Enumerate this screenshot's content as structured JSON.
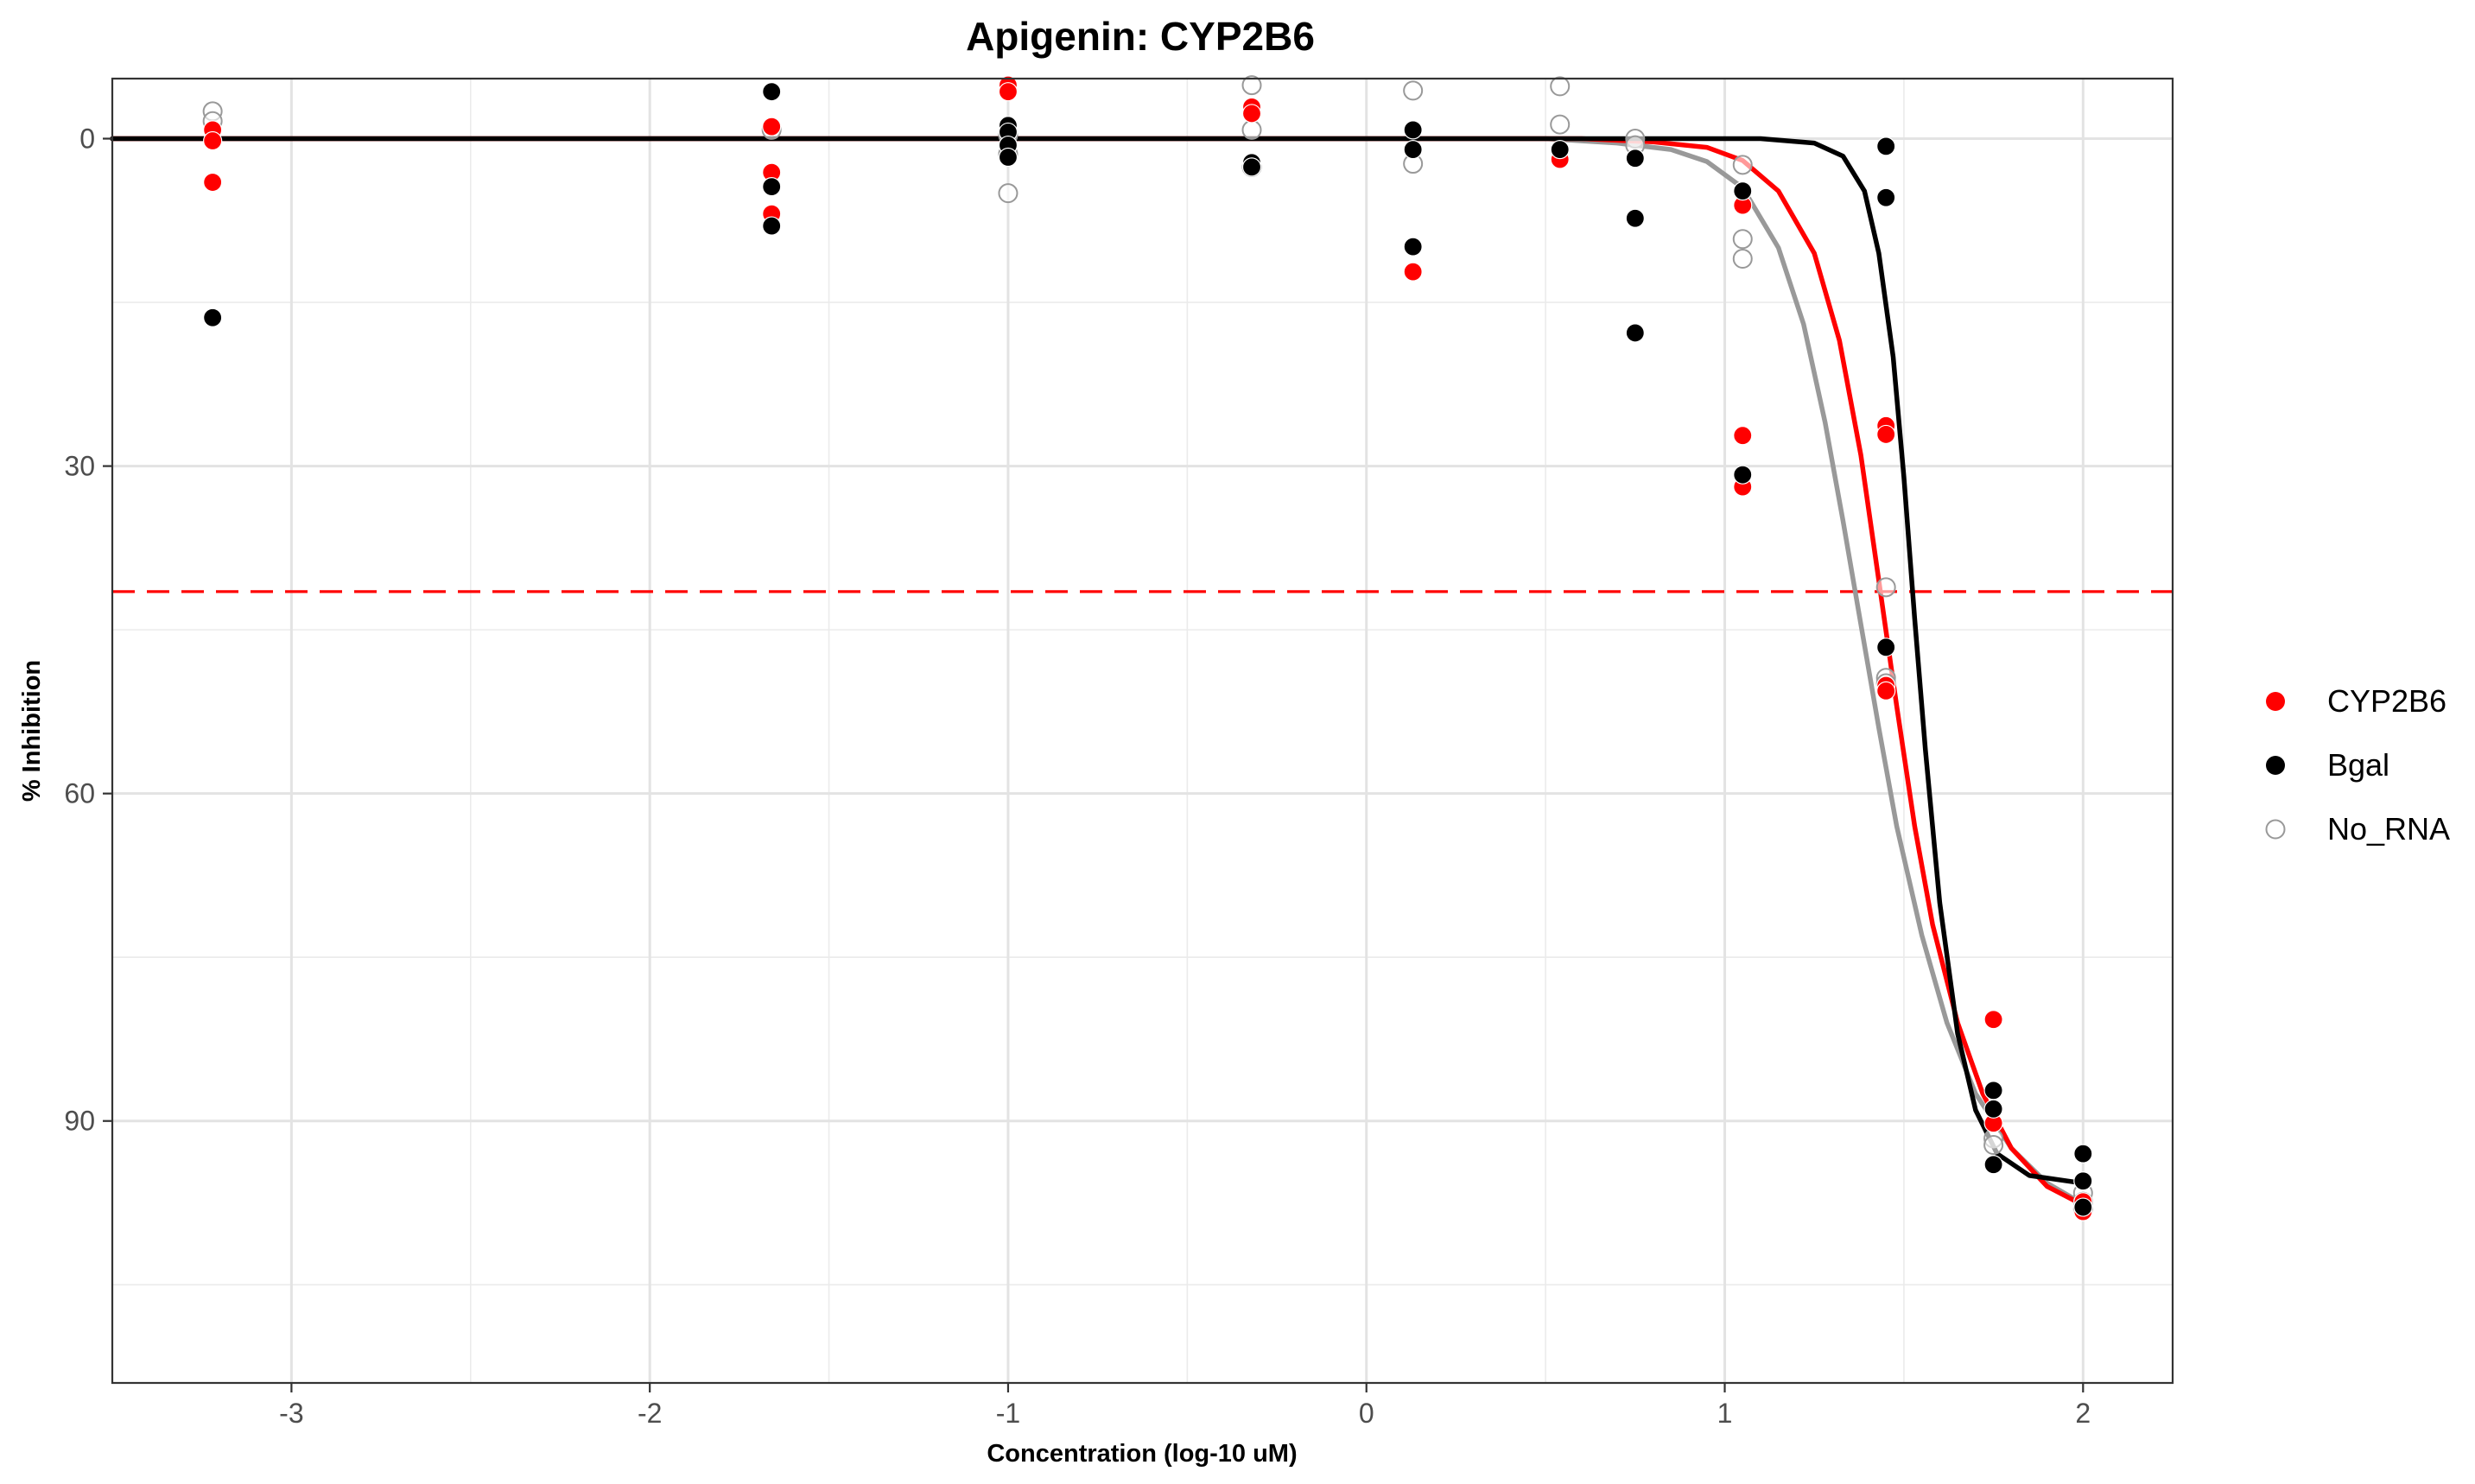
{
  "chart_data": {
    "type": "scatter",
    "title": "Apigenin: CYP2B6",
    "xlabel": "Concentration (log-10 uM)",
    "ylabel": "% Inhibition",
    "xlim": [
      -3.5,
      2.25
    ],
    "ylim": [
      -5.5,
      114
    ],
    "y_reversed": true,
    "x_ticks": [
      -3,
      -2,
      -1,
      0,
      1,
      2
    ],
    "x_tick_labels": [
      "-3",
      "-2",
      "-1",
      "0",
      "1",
      "2"
    ],
    "y_ticks": [
      0,
      30,
      60,
      90
    ],
    "y_tick_labels": [
      "0",
      "30",
      "60",
      "90"
    ],
    "grid": true,
    "legend_position": "right",
    "reference_line": {
      "orientation": "horizontal",
      "y": 41.5,
      "style": "dashed",
      "color": "#ff0000"
    },
    "series": [
      {
        "name": "CYP2B6",
        "marker": "filled-circle",
        "color": "#ff0000",
        "points": [
          [
            -3.22,
            -0.8
          ],
          [
            -3.22,
            0.2
          ],
          [
            -3.22,
            4.0
          ],
          [
            -1.66,
            -1.1
          ],
          [
            -1.66,
            3.1
          ],
          [
            -1.66,
            6.9
          ],
          [
            -1.0,
            -4.9
          ],
          [
            -1.0,
            -4.3
          ],
          [
            -0.32,
            -2.9
          ],
          [
            -0.32,
            -2.3
          ],
          [
            0.13,
            12.2
          ],
          [
            0.54,
            1.9
          ],
          [
            1.05,
            6.1
          ],
          [
            1.05,
            27.2
          ],
          [
            1.05,
            31.9
          ],
          [
            1.45,
            26.3
          ],
          [
            1.45,
            27.1
          ],
          [
            1.45,
            50.1
          ],
          [
            1.45,
            50.6
          ],
          [
            1.75,
            80.7
          ],
          [
            1.75,
            90.2
          ],
          [
            2.0,
            98.3
          ],
          [
            2.0,
            97.4
          ]
        ],
        "curve": [
          [
            -3.5,
            0.0
          ],
          [
            0.6,
            0.0
          ],
          [
            0.8,
            0.3
          ],
          [
            0.95,
            0.8
          ],
          [
            1.05,
            2.0
          ],
          [
            1.15,
            4.8
          ],
          [
            1.25,
            10.5
          ],
          [
            1.32,
            18.5
          ],
          [
            1.38,
            29.0
          ],
          [
            1.43,
            40.5
          ],
          [
            1.48,
            52.0
          ],
          [
            1.53,
            63.0
          ],
          [
            1.58,
            72.0
          ],
          [
            1.65,
            81.0
          ],
          [
            1.72,
            87.5
          ],
          [
            1.8,
            92.5
          ],
          [
            1.9,
            96.0
          ],
          [
            2.0,
            97.7
          ]
        ]
      },
      {
        "name": "Bgal",
        "marker": "filled-circle",
        "color": "#000000",
        "points": [
          [
            -3.22,
            16.4
          ],
          [
            -1.66,
            -4.3
          ],
          [
            -1.66,
            4.4
          ],
          [
            -1.66,
            8.0
          ],
          [
            -1.0,
            -1.2
          ],
          [
            -1.0,
            -0.6
          ],
          [
            -1.0,
            0.6
          ],
          [
            -1.0,
            1.7
          ],
          [
            -0.32,
            2.2
          ],
          [
            -0.32,
            2.6
          ],
          [
            0.13,
            -0.8
          ],
          [
            0.13,
            1.0
          ],
          [
            0.13,
            9.9
          ],
          [
            0.54,
            1.0
          ],
          [
            0.75,
            1.8
          ],
          [
            0.75,
            7.3
          ],
          [
            0.75,
            17.8
          ],
          [
            1.05,
            4.8
          ],
          [
            1.05,
            30.8
          ],
          [
            1.45,
            0.7
          ],
          [
            1.45,
            5.4
          ],
          [
            1.45,
            46.6
          ],
          [
            1.75,
            87.2
          ],
          [
            1.75,
            88.9
          ],
          [
            1.75,
            94.0
          ],
          [
            2.0,
            93.0
          ],
          [
            2.0,
            95.5
          ],
          [
            2.0,
            97.9
          ]
        ],
        "curve": [
          [
            -3.5,
            0.0
          ],
          [
            1.1,
            0.0
          ],
          [
            1.25,
            0.4
          ],
          [
            1.33,
            1.6
          ],
          [
            1.39,
            4.8
          ],
          [
            1.43,
            10.5
          ],
          [
            1.47,
            20.0
          ],
          [
            1.5,
            31.0
          ],
          [
            1.53,
            44.0
          ],
          [
            1.56,
            56.0
          ],
          [
            1.6,
            70.0
          ],
          [
            1.65,
            82.0
          ],
          [
            1.7,
            89.0
          ],
          [
            1.76,
            93.0
          ],
          [
            1.85,
            95.0
          ],
          [
            2.0,
            95.7
          ]
        ]
      },
      {
        "name": "No_RNA",
        "marker": "open-circle",
        "color": "#999999",
        "points": [
          [
            -3.22,
            -2.5
          ],
          [
            -3.22,
            -1.6
          ],
          [
            -1.66,
            -0.8
          ],
          [
            -1.0,
            -0.3
          ],
          [
            -1.0,
            1.4
          ],
          [
            -1.0,
            5.0
          ],
          [
            -0.32,
            -4.9
          ],
          [
            -0.32,
            -0.8
          ],
          [
            -0.32,
            2.6
          ],
          [
            0.13,
            -4.4
          ],
          [
            0.13,
            2.3
          ],
          [
            0.54,
            -4.8
          ],
          [
            0.54,
            -1.3
          ],
          [
            0.75,
            0.0
          ],
          [
            0.75,
            0.6
          ],
          [
            1.05,
            2.4
          ],
          [
            1.05,
            9.2
          ],
          [
            1.05,
            11.0
          ],
          [
            1.45,
            41.1
          ],
          [
            1.45,
            49.4
          ],
          [
            1.45,
            49.9
          ],
          [
            1.75,
            91.6
          ],
          [
            1.75,
            92.2
          ],
          [
            2.0,
            96.6
          ],
          [
            2.0,
            97.4
          ],
          [
            2.0,
            98.1
          ]
        ],
        "curve": [
          [
            -3.5,
            0.0
          ],
          [
            0.5,
            0.0
          ],
          [
            0.7,
            0.4
          ],
          [
            0.85,
            1.0
          ],
          [
            0.95,
            2.1
          ],
          [
            1.05,
            4.5
          ],
          [
            1.15,
            10.0
          ],
          [
            1.22,
            17.0
          ],
          [
            1.28,
            26.0
          ],
          [
            1.33,
            35.0
          ],
          [
            1.38,
            44.5
          ],
          [
            1.43,
            54.0
          ],
          [
            1.48,
            63.0
          ],
          [
            1.55,
            73.0
          ],
          [
            1.62,
            81.0
          ],
          [
            1.7,
            87.5
          ],
          [
            1.8,
            92.5
          ],
          [
            1.9,
            95.7
          ],
          [
            2.0,
            97.6
          ]
        ]
      }
    ]
  }
}
